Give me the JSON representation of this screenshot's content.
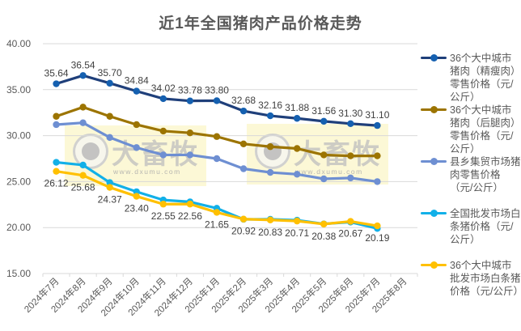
{
  "chart_data": {
    "type": "line",
    "title": "近1年全国猪肉产品价格走势",
    "xlabel": "",
    "ylabel": "",
    "ylim": [
      15,
      40
    ],
    "yticks": [
      "15.00",
      "20.00",
      "25.00",
      "30.00",
      "35.00",
      "40.00"
    ],
    "grid": true,
    "legend_position": "right",
    "categories": [
      "2024年7月",
      "2024年8月",
      "2024年9月",
      "2024年10月",
      "2024年11月",
      "2024年12月",
      "2025年1月",
      "2025年2月",
      "2025年3月",
      "2025年4月",
      "2025年5月",
      "2025年6月",
      "2025年7月",
      "2025年8月"
    ],
    "series": [
      {
        "name": "36个大中城市猪肉（精瘦肉）零售价格（元/公斤）",
        "color": "#1F3F7A",
        "marker_color": "#1560B0",
        "values": [
          35.64,
          36.54,
          35.7,
          34.84,
          34.02,
          33.78,
          33.8,
          32.68,
          32.16,
          31.88,
          31.56,
          31.3,
          31.1,
          null
        ],
        "labels_shown": true,
        "label_position": "above"
      },
      {
        "name": "36个大中城市猪肉（后腿肉）零售价格（元/公斤）",
        "color": "#9C7400",
        "marker_color": "#9C7400",
        "values": [
          32.1,
          33.1,
          32.1,
          31.2,
          30.5,
          30.3,
          29.9,
          29.1,
          28.8,
          28.6,
          27.9,
          27.8,
          27.8,
          null
        ],
        "labels_shown": false
      },
      {
        "name": "县乡集贸市场猪肉零售价格（元/公斤）",
        "color": "#6E8FD2",
        "marker_color": "#6E8FD2",
        "values": [
          31.2,
          31.4,
          29.8,
          28.7,
          27.9,
          27.9,
          27.5,
          26.4,
          26.0,
          25.8,
          25.3,
          25.4,
          25.0,
          null
        ],
        "labels_shown": false
      },
      {
        "name": "全国批发市场白条猪价格（元/公斤）",
        "color": "#12B0E8",
        "marker_color": "#12B0E8",
        "values": [
          27.1,
          26.8,
          24.9,
          23.9,
          23.0,
          22.8,
          22.1,
          20.9,
          20.9,
          20.8,
          20.4,
          20.6,
          19.9,
          null
        ],
        "labels_shown": false
      },
      {
        "name": "36个大中城市批发市场白条猪价格（元/公斤）",
        "color": "#FFC000",
        "marker_color": "#FFC000",
        "values": [
          26.12,
          25.68,
          24.37,
          23.4,
          22.55,
          22.56,
          21.65,
          20.92,
          20.83,
          20.71,
          20.38,
          20.67,
          20.19,
          null
        ],
        "labels_shown": true,
        "label_position": "below"
      }
    ],
    "data_labels_top": [
      "35.64",
      "36.54",
      "35.70",
      "34.84",
      "34.02",
      "33.78",
      "33.80",
      "32.68",
      "32.16",
      "31.88",
      "31.56",
      "31.30",
      "31.10"
    ],
    "data_labels_bottom": [
      "26.12",
      "25.68",
      "24.37",
      "23.40",
      "22.55",
      "22.56",
      "21.65",
      "20.92",
      "20.83",
      "20.71",
      "20.38",
      "20.67",
      "20.19"
    ]
  },
  "legend": {
    "items": [
      {
        "label": "36个大中城市猪肉（精瘦肉）零售价格（元/公斤）",
        "color": "#1F3F7A",
        "dot": "#1560B0"
      },
      {
        "label": "36个大中城市猪肉（后腿肉）零售价格（元/公斤）",
        "color": "#9C7400",
        "dot": "#9C7400"
      },
      {
        "label": "县乡集贸市场猪肉零售价格（元/公斤）",
        "color": "#6E8FD2",
        "dot": "#6E8FD2"
      },
      {
        "label": "全国批发市场白条猪价格（元/公斤）",
        "color": "#12B0E8",
        "dot": "#12B0E8"
      },
      {
        "label": "36个大中城市批发市场白条猪价格（元/公斤）",
        "color": "#FFC000",
        "dot": "#FFC000"
      }
    ]
  },
  "watermark": {
    "brand": "大畜牧",
    "url": "www.dxumu.com"
  }
}
